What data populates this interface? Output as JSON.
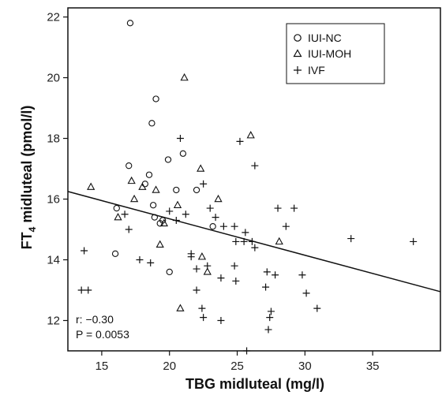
{
  "chart_data": {
    "type": "scatter",
    "xlabel": "TBG midluteal (mg/l)",
    "ylabel": {
      "prefix": "FT",
      "subscript": "4",
      "suffix": " midluteal (pmol/l)"
    },
    "xlim": [
      12.5,
      40
    ],
    "ylim": [
      11,
      22.3
    ],
    "xticks": [
      15,
      20,
      25,
      30,
      35
    ],
    "yticks": [
      12,
      14,
      16,
      18,
      20,
      22
    ],
    "grid": false,
    "legend_position": "top-right",
    "series": [
      {
        "name": "IUI-NC",
        "marker": "circle",
        "points": [
          [
            17.1,
            21.8
          ],
          [
            19.0,
            19.3
          ],
          [
            18.7,
            18.5
          ],
          [
            19.9,
            17.3
          ],
          [
            21.0,
            17.5
          ],
          [
            17.0,
            17.1
          ],
          [
            18.5,
            16.8
          ],
          [
            18.2,
            16.5
          ],
          [
            20.5,
            16.3
          ],
          [
            16.1,
            15.7
          ],
          [
            18.8,
            15.8
          ],
          [
            19.3,
            15.2
          ],
          [
            18.9,
            15.4
          ],
          [
            19.5,
            15.3
          ],
          [
            23.2,
            15.1
          ],
          [
            16.0,
            14.2
          ],
          [
            20.0,
            13.6
          ],
          [
            22.0,
            16.3
          ]
        ]
      },
      {
        "name": "IUI-MOH",
        "marker": "triangle",
        "points": [
          [
            21.1,
            20.0
          ],
          [
            26.0,
            18.1
          ],
          [
            22.3,
            17.0
          ],
          [
            17.2,
            16.6
          ],
          [
            18.0,
            16.4
          ],
          [
            14.2,
            16.4
          ],
          [
            19.0,
            16.3
          ],
          [
            17.4,
            16.0
          ],
          [
            23.6,
            16.0
          ],
          [
            20.6,
            15.8
          ],
          [
            16.2,
            15.4
          ],
          [
            19.6,
            15.2
          ],
          [
            19.3,
            14.5
          ],
          [
            28.1,
            14.6
          ],
          [
            22.4,
            14.1
          ],
          [
            22.8,
            13.6
          ],
          [
            20.8,
            12.4
          ]
        ]
      },
      {
        "name": "IVF",
        "marker": "plus",
        "points": [
          [
            20.8,
            18.0
          ],
          [
            25.2,
            17.9
          ],
          [
            26.3,
            17.1
          ],
          [
            22.5,
            16.5
          ],
          [
            23.0,
            15.7
          ],
          [
            21.2,
            15.5
          ],
          [
            20.0,
            15.6
          ],
          [
            16.7,
            15.5
          ],
          [
            17.0,
            15.0
          ],
          [
            20.5,
            15.3
          ],
          [
            23.4,
            15.4
          ],
          [
            24.0,
            15.1
          ],
          [
            24.8,
            15.1
          ],
          [
            25.6,
            14.9
          ],
          [
            26.1,
            14.6
          ],
          [
            26.3,
            14.4
          ],
          [
            25.5,
            14.6
          ],
          [
            24.9,
            14.6
          ],
          [
            28.0,
            15.7
          ],
          [
            29.2,
            15.7
          ],
          [
            28.6,
            15.1
          ],
          [
            33.4,
            14.7
          ],
          [
            38.0,
            14.6
          ],
          [
            13.7,
            14.3
          ],
          [
            21.6,
            14.2
          ],
          [
            21.6,
            14.1
          ],
          [
            22.0,
            13.7
          ],
          [
            22.8,
            13.8
          ],
          [
            24.8,
            13.8
          ],
          [
            23.8,
            13.4
          ],
          [
            24.9,
            13.3
          ],
          [
            17.8,
            14.0
          ],
          [
            18.6,
            13.9
          ],
          [
            27.2,
            13.6
          ],
          [
            27.8,
            13.5
          ],
          [
            29.8,
            13.5
          ],
          [
            27.1,
            13.1
          ],
          [
            30.1,
            12.9
          ],
          [
            22.0,
            13.0
          ],
          [
            22.4,
            12.4
          ],
          [
            22.5,
            12.1
          ],
          [
            23.8,
            12.0
          ],
          [
            27.5,
            12.3
          ],
          [
            27.4,
            12.1
          ],
          [
            27.3,
            11.7
          ],
          [
            30.9,
            12.4
          ],
          [
            25.7,
            11.0
          ],
          [
            13.5,
            13.0
          ],
          [
            14.0,
            13.0
          ]
        ]
      }
    ],
    "regression_line": {
      "x": [
        12.5,
        40
      ],
      "y": [
        16.25,
        12.95
      ]
    },
    "annotations": {
      "r": "r: −0.30",
      "p": "P = 0.0053"
    }
  }
}
